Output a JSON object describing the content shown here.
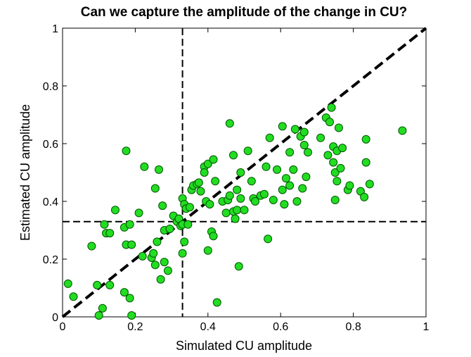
{
  "chart_data": {
    "type": "scatter",
    "title": "Can we capture the amplitude of the change in CU?",
    "xlabel": "Simulated CU amplitude",
    "ylabel": "Estimated CU amplitude",
    "xlim": [
      0,
      1
    ],
    "ylim": [
      0,
      1
    ],
    "xticks": [
      0,
      0.2,
      0.4,
      0.6,
      0.8,
      1
    ],
    "yticks": [
      0,
      0.2,
      0.4,
      0.6,
      0.8,
      1
    ],
    "xtick_labels": [
      "0",
      "0.2",
      "0.4",
      "0.6",
      "0.8",
      "1"
    ],
    "ytick_labels": [
      "0",
      "0.2",
      "0.4",
      "0.6",
      "0.8",
      "1"
    ],
    "grid": false,
    "marker_color": "#22dd22",
    "marker_edge_color": "#005500",
    "reference_lines": [
      {
        "kind": "identity",
        "from": [
          0,
          0
        ],
        "to": [
          1,
          1
        ],
        "style": "dashed-thick",
        "color": "#000000"
      },
      {
        "kind": "vertical",
        "x": 0.33,
        "style": "dashed",
        "color": "#000000"
      },
      {
        "kind": "horizontal",
        "y": 0.33,
        "style": "dashed",
        "color": "#000000"
      }
    ],
    "points": [
      [
        0.015,
        0.115
      ],
      [
        0.03,
        0.07
      ],
      [
        0.08,
        0.245
      ],
      [
        0.095,
        0.11
      ],
      [
        0.1,
        0.005
      ],
      [
        0.11,
        0.03
      ],
      [
        0.115,
        0.32
      ],
      [
        0.12,
        0.29
      ],
      [
        0.13,
        0.29
      ],
      [
        0.13,
        0.11
      ],
      [
        0.145,
        0.37
      ],
      [
        0.17,
        0.31
      ],
      [
        0.17,
        0.085
      ],
      [
        0.175,
        0.575
      ],
      [
        0.175,
        0.25
      ],
      [
        0.185,
        0.065
      ],
      [
        0.185,
        0.32
      ],
      [
        0.19,
        0.25
      ],
      [
        0.19,
        0.005
      ],
      [
        0.21,
        0.36
      ],
      [
        0.22,
        0.21
      ],
      [
        0.225,
        0.52
      ],
      [
        0.245,
        0.205
      ],
      [
        0.25,
        0.22
      ],
      [
        0.255,
        0.445
      ],
      [
        0.255,
        0.18
      ],
      [
        0.26,
        0.26
      ],
      [
        0.265,
        0.51
      ],
      [
        0.27,
        0.13
      ],
      [
        0.275,
        0.385
      ],
      [
        0.28,
        0.3
      ],
      [
        0.28,
        0.19
      ],
      [
        0.29,
        0.16
      ],
      [
        0.295,
        0.305
      ],
      [
        0.305,
        0.35
      ],
      [
        0.315,
        0.33
      ],
      [
        0.32,
        0.34
      ],
      [
        0.325,
        0.315
      ],
      [
        0.33,
        0.32
      ],
      [
        0.33,
        0.41
      ],
      [
        0.33,
        0.22
      ],
      [
        0.335,
        0.26
      ],
      [
        0.335,
        0.39
      ],
      [
        0.34,
        0.375
      ],
      [
        0.345,
        0.32
      ],
      [
        0.35,
        0.38
      ],
      [
        0.355,
        0.44
      ],
      [
        0.36,
        0.455
      ],
      [
        0.37,
        0.46
      ],
      [
        0.375,
        0.465
      ],
      [
        0.38,
        0.435
      ],
      [
        0.39,
        0.52
      ],
      [
        0.39,
        0.5
      ],
      [
        0.395,
        0.4
      ],
      [
        0.4,
        0.53
      ],
      [
        0.4,
        0.23
      ],
      [
        0.405,
        0.39
      ],
      [
        0.41,
        0.295
      ],
      [
        0.415,
        0.28
      ],
      [
        0.415,
        0.545
      ],
      [
        0.42,
        0.47
      ],
      [
        0.425,
        0.05
      ],
      [
        0.44,
        0.4
      ],
      [
        0.45,
        0.36
      ],
      [
        0.455,
        0.405
      ],
      [
        0.46,
        0.42
      ],
      [
        0.46,
        0.67
      ],
      [
        0.47,
        0.365
      ],
      [
        0.47,
        0.56
      ],
      [
        0.475,
        0.34
      ],
      [
        0.48,
        0.44
      ],
      [
        0.48,
        0.37
      ],
      [
        0.485,
        0.175
      ],
      [
        0.49,
        0.5
      ],
      [
        0.49,
        0.41
      ],
      [
        0.5,
        0.37
      ],
      [
        0.51,
        0.575
      ],
      [
        0.52,
        0.47
      ],
      [
        0.525,
        0.41
      ],
      [
        0.53,
        0.4
      ],
      [
        0.545,
        0.42
      ],
      [
        0.555,
        0.425
      ],
      [
        0.56,
        0.52
      ],
      [
        0.565,
        0.27
      ],
      [
        0.57,
        0.62
      ],
      [
        0.58,
        0.405
      ],
      [
        0.59,
        0.51
      ],
      [
        0.605,
        0.66
      ],
      [
        0.605,
        0.44
      ],
      [
        0.61,
        0.39
      ],
      [
        0.615,
        0.48
      ],
      [
        0.625,
        0.455
      ],
      [
        0.625,
        0.57
      ],
      [
        0.635,
        0.51
      ],
      [
        0.64,
        0.65
      ],
      [
        0.645,
        0.4
      ],
      [
        0.655,
        0.625
      ],
      [
        0.66,
        0.445
      ],
      [
        0.665,
        0.64
      ],
      [
        0.665,
        0.595
      ],
      [
        0.67,
        0.485
      ],
      [
        0.675,
        0.57
      ],
      [
        0.71,
        0.62
      ],
      [
        0.725,
        0.69
      ],
      [
        0.73,
        0.56
      ],
      [
        0.735,
        0.675
      ],
      [
        0.74,
        0.725
      ],
      [
        0.745,
        0.535
      ],
      [
        0.745,
        0.59
      ],
      [
        0.75,
        0.5
      ],
      [
        0.75,
        0.405
      ],
      [
        0.755,
        0.575
      ],
      [
        0.755,
        0.47
      ],
      [
        0.76,
        0.655
      ],
      [
        0.765,
        0.515
      ],
      [
        0.77,
        0.585
      ],
      [
        0.785,
        0.44
      ],
      [
        0.79,
        0.455
      ],
      [
        0.82,
        0.435
      ],
      [
        0.83,
        0.415
      ],
      [
        0.835,
        0.535
      ],
      [
        0.835,
        0.615
      ],
      [
        0.845,
        0.46
      ],
      [
        0.935,
        0.645
      ]
    ]
  }
}
